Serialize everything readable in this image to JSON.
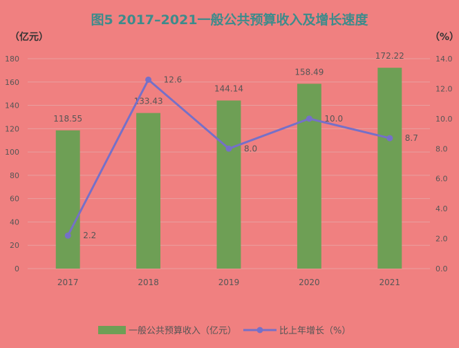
{
  "chart_data": {
    "type": "bar",
    "title": "图5 2017–2021一般公共预算收入及增长速度",
    "categories": [
      "2017",
      "2018",
      "2019",
      "2020",
      "2021"
    ],
    "y_left": {
      "label": "（亿元）",
      "min": 0,
      "max": 180,
      "step": 20
    },
    "y_right": {
      "label": "（%）",
      "min": 0,
      "max": 14,
      "step": 2
    },
    "series": [
      {
        "name": "一般公共预算收入（亿元）",
        "type": "bar",
        "axis": "left",
        "values": [
          118.55,
          133.43,
          144.14,
          158.49,
          172.22
        ],
        "labels": [
          "118.55",
          "133.43",
          "144.14",
          "158.49",
          "172.22"
        ],
        "color": "#6E9F55"
      },
      {
        "name": "比上年增长（%）",
        "type": "line",
        "axis": "right",
        "values": [
          2.2,
          12.6,
          8.0,
          10.0,
          8.7
        ],
        "labels": [
          "2.2",
          "12.6",
          "8.0",
          "10.0",
          "8.7"
        ],
        "color": "#7570C8"
      }
    ],
    "grid": true,
    "legend_position": "bottom",
    "colors": {
      "background": "#F08080",
      "title": "#3D8B8B",
      "text": "#555555",
      "grid": "#E7A0A0"
    }
  }
}
